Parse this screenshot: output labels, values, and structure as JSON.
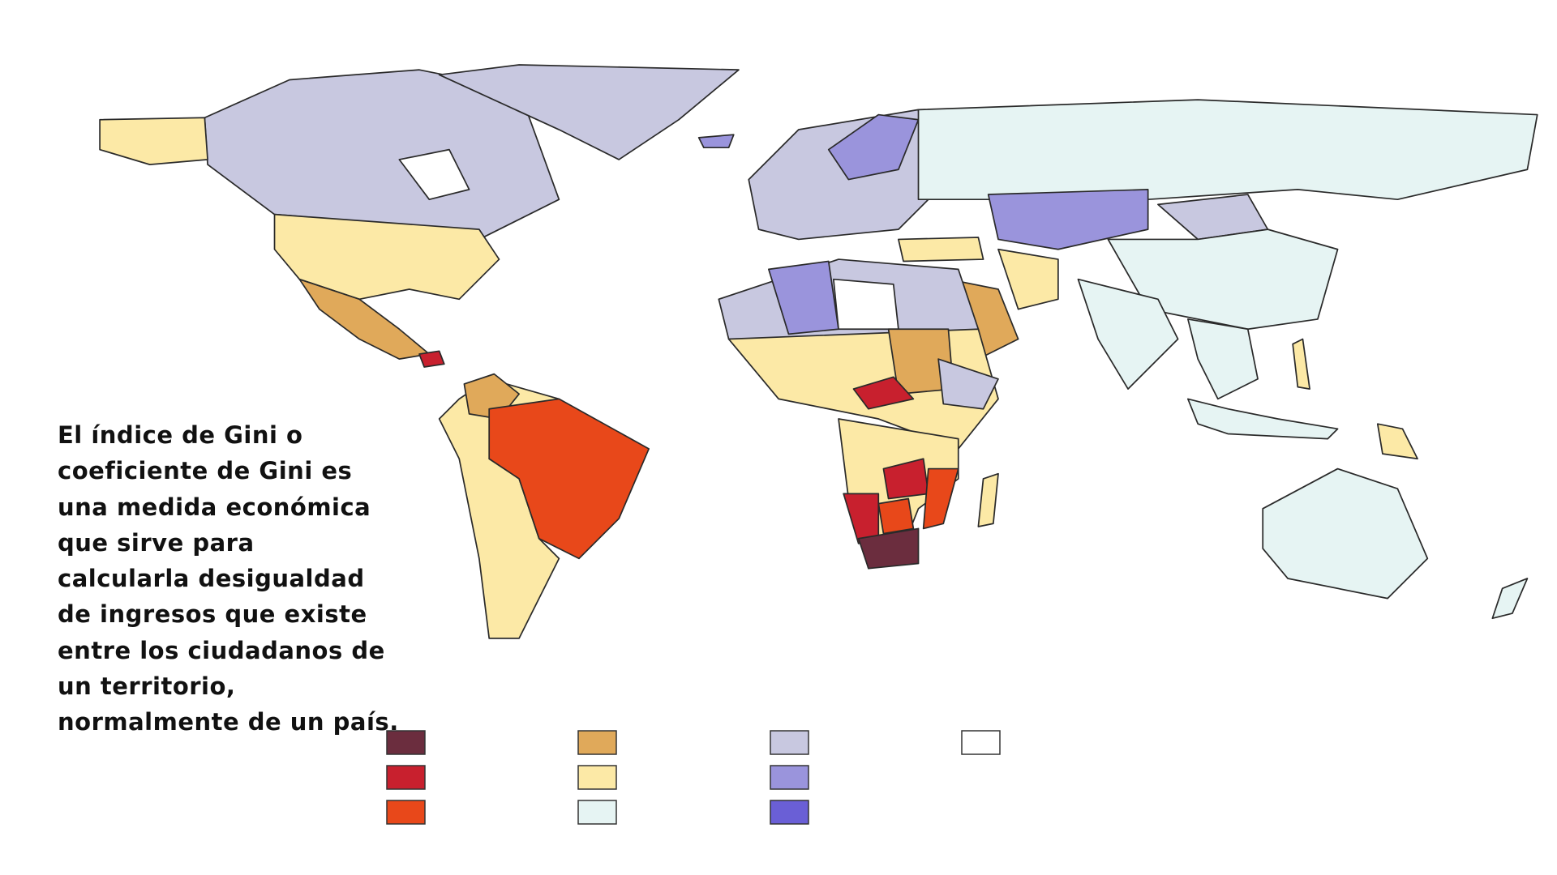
{
  "description": {
    "lines": [
      "El índice de Gini o",
      "coeficiente de Gini es",
      "una medida económica",
      "que sirve para",
      "calcularla desigualdad",
      "de ingresos que existe",
      "entre los ciudadanos de",
      "un territorio,",
      "normalmente de un país."
    ]
  },
  "legend": {
    "columns": [
      [
        "#6b2d3e",
        "#c8202e",
        "#e8481a"
      ],
      [
        "#e0a95a",
        "#fce9a6",
        "#e6f4f3"
      ],
      [
        "#c8c8e0",
        "#9a94dc",
        "#6a5fd6"
      ],
      [
        "#ffffff"
      ]
    ]
  }
}
